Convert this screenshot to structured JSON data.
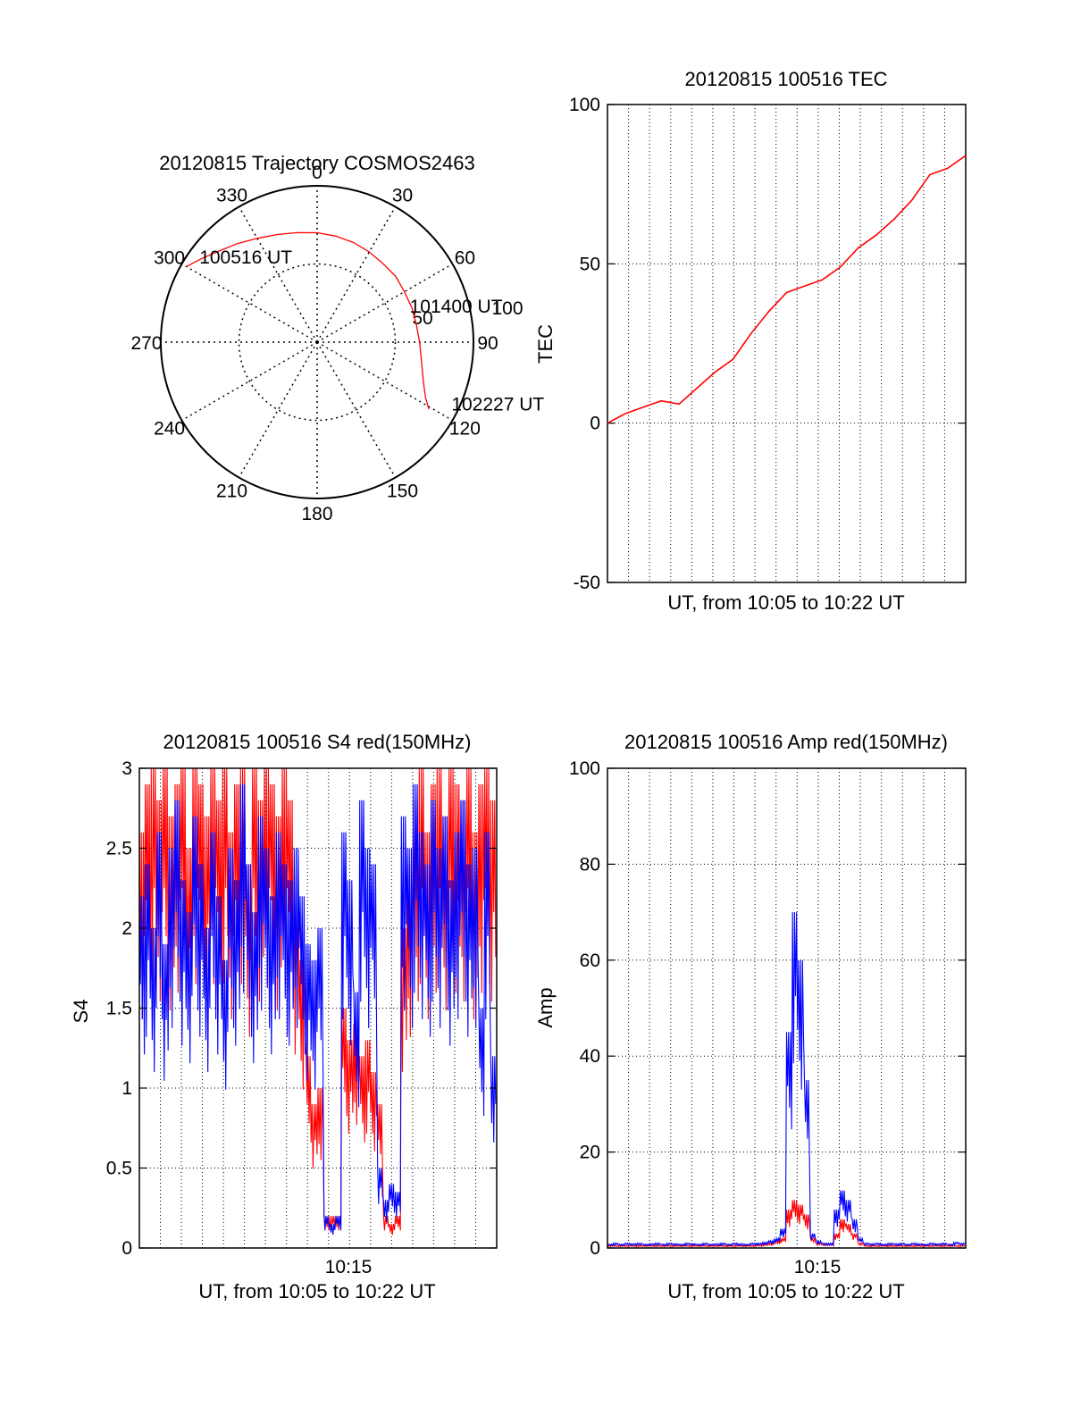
{
  "chart_data": [
    {
      "type": "polar",
      "title": "20120815 Trajectory COSMOS2463",
      "angle_labels": [
        "0",
        "30",
        "60",
        "90",
        "120",
        "150",
        "180",
        "210",
        "240",
        "270",
        "300",
        "330"
      ],
      "radial_labels": [
        "50",
        "100"
      ],
      "radial_range": [
        0,
        100
      ],
      "grid": true,
      "series": [
        {
          "color": "#ff0000",
          "points": [
            {
              "az": 300,
              "el": 3
            },
            {
              "az": 306,
              "el": 8
            },
            {
              "az": 313,
              "el": 13
            },
            {
              "az": 321,
              "el": 17
            },
            {
              "az": 330,
              "el": 21
            },
            {
              "az": 340,
              "el": 24
            },
            {
              "az": 350,
              "el": 26
            },
            {
              "az": 0,
              "el": 27
            },
            {
              "az": 10,
              "el": 28
            },
            {
              "az": 20,
              "el": 29
            },
            {
              "az": 30,
              "el": 30
            },
            {
              "az": 40,
              "el": 31
            },
            {
              "az": 50,
              "el": 31
            },
            {
              "az": 60,
              "el": 32
            },
            {
              "az": 70,
              "el": 32
            },
            {
              "az": 80,
              "el": 32
            },
            {
              "az": 90,
              "el": 31
            },
            {
              "az": 100,
              "el": 29
            },
            {
              "az": 110,
              "el": 25
            },
            {
              "az": 117,
              "el": 20
            },
            {
              "az": 121,
              "el": 15
            }
          ]
        }
      ],
      "annotations": [
        {
          "text": "100516 UT",
          "az": 307,
          "el": 9
        },
        {
          "text": "101400 UT",
          "az": 70,
          "el": 30
        },
        {
          "text": "102227 UT",
          "az": 114,
          "el": 2
        }
      ]
    },
    {
      "type": "line",
      "title": "20120815 100516 TEC",
      "xlabel": "UT, from 10:05 to 10:22 UT",
      "ylabel": "TEC",
      "ylim": [
        -50,
        100
      ],
      "yticks": [
        "-50",
        "0",
        "50",
        "100"
      ],
      "grid": true,
      "series": [
        {
          "color": "#ff0000",
          "x": [
            0,
            0.05,
            0.1,
            0.15,
            0.2,
            0.25,
            0.3,
            0.35,
            0.4,
            0.45,
            0.5,
            0.55,
            0.6,
            0.65,
            0.7,
            0.75,
            0.8,
            0.85,
            0.9,
            0.95,
            1.0
          ],
          "values": [
            0,
            3,
            5,
            7,
            6,
            11,
            16,
            20,
            28,
            35,
            41,
            43,
            45,
            49,
            55,
            59,
            64,
            70,
            78,
            80,
            84
          ]
        }
      ]
    },
    {
      "type": "line",
      "title": "20120815 100516 S4 red(150MHz)",
      "xlabel": "UT, from 10:05 to 10:22 UT",
      "ylabel": "S4",
      "ylim": [
        0,
        3
      ],
      "yticks": [
        "0",
        "0.5",
        "1",
        "1.5",
        "2",
        "2.5",
        "3"
      ],
      "xtick_label": "10:15",
      "grid": true,
      "series": [
        {
          "color": "#ff0000",
          "values": [
            2.6,
            2.9,
            3,
            2.8,
            3,
            2.7,
            2.9,
            3,
            2.5,
            3,
            2.9,
            2.7,
            3,
            2.8,
            3,
            2.6,
            2.9,
            3,
            2.4,
            3,
            2.8,
            3,
            2.9,
            2.7,
            3,
            2.8,
            2.2,
            1.8,
            1.2,
            0.9,
            1.0,
            0.2,
            0.2,
            0.2,
            1.5,
            1.3,
            1.4,
            1.2,
            1.3,
            1.1,
            0.9,
            0.2,
            0.15,
            0.2,
            2.0,
            2.4,
            2.8,
            3,
            2.6,
            2.9,
            3,
            2.7,
            3,
            2.9,
            2.8,
            3,
            2.6,
            2.9,
            3,
            2.8
          ]
        },
        {
          "color": "#0000ff",
          "values": [
            2.2,
            2.4,
            2.0,
            2.6,
            1.9,
            2.5,
            2.8,
            2.3,
            2.1,
            2.7,
            2.4,
            2.0,
            2.6,
            2.2,
            1.8,
            2.5,
            2.3,
            2.9,
            2.4,
            2.1,
            2.7,
            2.5,
            2.2,
            2.6,
            2.4,
            2.3,
            2.5,
            2.2,
            1.9,
            1.8,
            2.0,
            0.2,
            0.15,
            0.2,
            2.6,
            2.3,
            1.6,
            2.8,
            2.5,
            2.4,
            0.5,
            0.3,
            0.4,
            0.35,
            2.7,
            2.5,
            2.9,
            2.6,
            2.4,
            2.8,
            2.5,
            2.7,
            2.3,
            2.6,
            2.8,
            2.4,
            2.5,
            1.5,
            2.6,
            1.2
          ]
        }
      ]
    },
    {
      "type": "line",
      "title": "20120815 100516 Amp red(150MHz)",
      "xlabel": "UT, from 10:05 to 10:22 UT",
      "ylabel": "Amp",
      "ylim": [
        0,
        100
      ],
      "yticks": [
        "0",
        "20",
        "40",
        "60",
        "80",
        "100"
      ],
      "xtick_label": "10:15",
      "grid": true,
      "series": [
        {
          "color": "#ff0000",
          "values": [
            0.5,
            0.5,
            0.5,
            0.5,
            0.5,
            0.5,
            0.5,
            0.5,
            0.5,
            0.5,
            0.5,
            0.5,
            0.5,
            0.5,
            0.5,
            0.5,
            0.5,
            0.5,
            0.5,
            0.5,
            0.5,
            0.5,
            0.5,
            0.5,
            0.5,
            0.6,
            0.8,
            1,
            1.5,
            2,
            8,
            10,
            9,
            7,
            2,
            1,
            0.8,
            0.8,
            3,
            6,
            5,
            3,
            1,
            0.5,
            0.5,
            0.5,
            0.5,
            0.5,
            0.5,
            0.5,
            0.5,
            0.5,
            0.5,
            0.5,
            0.5,
            0.5,
            0.5,
            0.5,
            0.5,
            0.5
          ]
        },
        {
          "color": "#0000ff",
          "values": [
            0.8,
            1,
            0.8,
            1,
            0.9,
            1,
            0.8,
            0.9,
            1,
            0.8,
            1,
            0.9,
            0.8,
            1,
            0.9,
            0.8,
            1,
            0.8,
            0.9,
            1,
            0.8,
            1,
            0.9,
            0.8,
            1,
            1,
            1.2,
            1.5,
            2,
            4,
            45,
            70,
            60,
            35,
            3,
            1.5,
            1,
            1,
            8,
            12,
            10,
            6,
            2,
            1,
            0.9,
            1,
            0.8,
            1,
            0.9,
            1,
            0.8,
            1,
            0.9,
            0.8,
            1,
            0.9,
            1,
            0.8,
            1.2,
            1
          ]
        }
      ]
    }
  ]
}
